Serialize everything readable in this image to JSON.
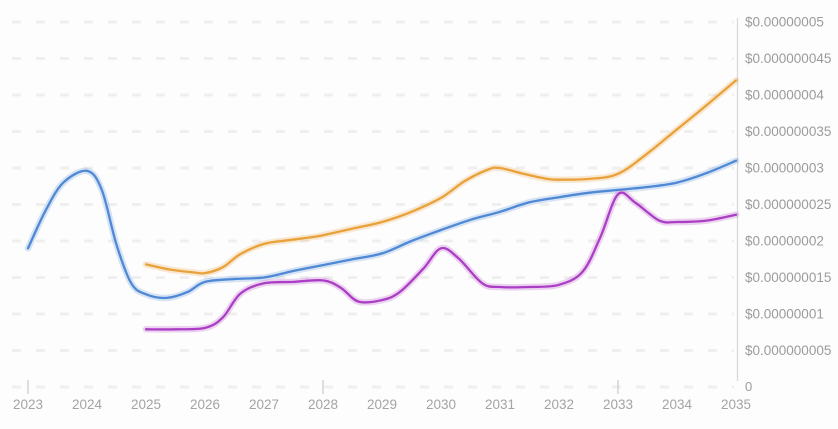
{
  "chart_data": {
    "type": "line",
    "title": "",
    "xlabel": "",
    "ylabel": "",
    "x_axis": {
      "labels": [
        "2023",
        "2024",
        "2025",
        "2026",
        "2027",
        "2028",
        "2029",
        "2030",
        "2031",
        "2032",
        "2033",
        "2034",
        "2035"
      ],
      "range": [
        2023,
        2035
      ],
      "tick_marks_at": [
        2023,
        2028,
        2033
      ]
    },
    "y_axis": {
      "side": "right",
      "range": [
        0,
        5e-08
      ],
      "zero_label": "0",
      "ticks": [
        {
          "label": "$0.00000005",
          "value": 5e-08
        },
        {
          "label": "$0.000000045",
          "value": 4.5e-08
        },
        {
          "label": "$0.00000004",
          "value": 4e-08
        },
        {
          "label": "$0.000000035",
          "value": 3.5e-08
        },
        {
          "label": "$0.00000003",
          "value": 3e-08
        },
        {
          "label": "$0.000000025",
          "value": 2.5e-08
        },
        {
          "label": "$0.00000002",
          "value": 2e-08
        },
        {
          "label": "$0.000000015",
          "value": 1.5e-08
        },
        {
          "label": "$0.00000001",
          "value": 1e-08
        },
        {
          "label": "$0.000000005",
          "value": 5e-09
        },
        {
          "label": "0",
          "value": 0
        }
      ]
    },
    "grid": {
      "horizontal": true,
      "style": "dashed",
      "color": "#efefef"
    },
    "legend": "none",
    "background_color": "#fdfdfd",
    "axis_line_color": "#d9d9d9",
    "tick_color": "#c9c9c9",
    "series": [
      {
        "name": "orange-line",
        "color": "#e9a13a",
        "points": [
          [
            2025,
            1.68e-08
          ],
          [
            2025.4,
            1.61e-08
          ],
          [
            2025.8,
            1.57e-08
          ],
          [
            2026,
            1.56e-08
          ],
          [
            2026.3,
            1.64e-08
          ],
          [
            2026.6,
            1.82e-08
          ],
          [
            2027,
            1.96e-08
          ],
          [
            2027.4,
            2.01e-08
          ],
          [
            2027.8,
            2.05e-08
          ],
          [
            2028,
            2.08e-08
          ],
          [
            2028.5,
            2.17e-08
          ],
          [
            2029,
            2.26e-08
          ],
          [
            2029.5,
            2.4e-08
          ],
          [
            2030,
            2.59e-08
          ],
          [
            2030.4,
            2.82e-08
          ],
          [
            2030.8,
            2.98e-08
          ],
          [
            2031,
            3e-08
          ],
          [
            2031.4,
            2.92e-08
          ],
          [
            2031.8,
            2.85e-08
          ],
          [
            2032,
            2.84e-08
          ],
          [
            2032.5,
            2.85e-08
          ],
          [
            2033,
            2.92e-08
          ],
          [
            2033.5,
            3.2e-08
          ],
          [
            2034,
            3.53e-08
          ],
          [
            2034.5,
            3.86e-08
          ],
          [
            2035,
            4.2e-08
          ]
        ]
      },
      {
        "name": "blue-line",
        "color": "#4f88d5",
        "points": [
          [
            2023,
            1.9e-08
          ],
          [
            2023.3,
            2.42e-08
          ],
          [
            2023.6,
            2.8e-08
          ],
          [
            2024,
            2.96e-08
          ],
          [
            2024.25,
            2.7e-08
          ],
          [
            2024.5,
            1.95e-08
          ],
          [
            2024.75,
            1.42e-08
          ],
          [
            2025,
            1.27e-08
          ],
          [
            2025.35,
            1.22e-08
          ],
          [
            2025.7,
            1.3e-08
          ],
          [
            2026,
            1.44e-08
          ],
          [
            2026.5,
            1.48e-08
          ],
          [
            2027,
            1.5e-08
          ],
          [
            2027.5,
            1.59e-08
          ],
          [
            2028,
            1.67e-08
          ],
          [
            2028.5,
            1.75e-08
          ],
          [
            2029,
            1.83e-08
          ],
          [
            2029.5,
            2e-08
          ],
          [
            2030,
            2.15e-08
          ],
          [
            2030.5,
            2.29e-08
          ],
          [
            2031,
            2.4e-08
          ],
          [
            2031.5,
            2.53e-08
          ],
          [
            2032,
            2.6e-08
          ],
          [
            2032.5,
            2.66e-08
          ],
          [
            2033,
            2.7e-08
          ],
          [
            2033.5,
            2.74e-08
          ],
          [
            2034,
            2.8e-08
          ],
          [
            2034.5,
            2.93e-08
          ],
          [
            2035,
            3.1e-08
          ]
        ]
      },
      {
        "name": "magenta-line",
        "color": "#ab3ec5",
        "points": [
          [
            2025,
            7.9e-09
          ],
          [
            2025.5,
            7.9e-09
          ],
          [
            2026,
            8.1e-09
          ],
          [
            2026.3,
            9.5e-09
          ],
          [
            2026.6,
            1.28e-08
          ],
          [
            2027,
            1.42e-08
          ],
          [
            2027.5,
            1.44e-08
          ],
          [
            2028,
            1.46e-08
          ],
          [
            2028.3,
            1.36e-08
          ],
          [
            2028.6,
            1.17e-08
          ],
          [
            2029,
            1.19e-08
          ],
          [
            2029.3,
            1.3e-08
          ],
          [
            2029.7,
            1.62e-08
          ],
          [
            2030,
            1.9e-08
          ],
          [
            2030.3,
            1.76e-08
          ],
          [
            2030.7,
            1.42e-08
          ],
          [
            2031,
            1.37e-08
          ],
          [
            2031.5,
            1.37e-08
          ],
          [
            2032,
            1.4e-08
          ],
          [
            2032.4,
            1.58e-08
          ],
          [
            2032.7,
            2.05e-08
          ],
          [
            2033,
            2.64e-08
          ],
          [
            2033.3,
            2.52e-08
          ],
          [
            2033.7,
            2.28e-08
          ],
          [
            2034,
            2.26e-08
          ],
          [
            2034.5,
            2.28e-08
          ],
          [
            2035,
            2.36e-08
          ]
        ]
      }
    ]
  }
}
